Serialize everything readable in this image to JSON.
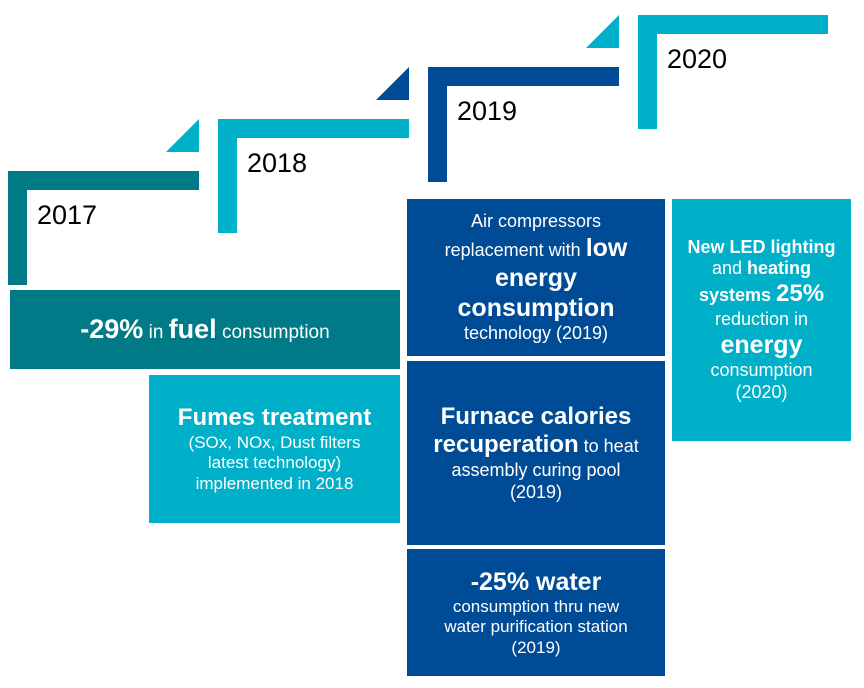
{
  "colors": {
    "teal": "#007A87",
    "cyan": "#00AFC8",
    "navy": "#004B96"
  },
  "years": [
    "2017",
    "2018",
    "2019",
    "2020"
  ],
  "fuel": {
    "pct": "-29%",
    "in": " in ",
    "fuel": "fuel",
    "rest": " consumption"
  },
  "fumes": {
    "title": "Fumes treatment",
    "l1": "(SOx, NOx, Dust filters",
    "l2": "latest technology)",
    "l3": "implemented in 2018"
  },
  "air": {
    "l1": "Air compressors",
    "l2a": "replacement with ",
    "l2b": "low",
    "l3": "energy",
    "l4": "consumption",
    "l5": "technology (2019)"
  },
  "furnace": {
    "l1": "Furnace calories",
    "l2a": "recuperation",
    "l2b": " to heat",
    "l3": "assembly curing pool",
    "l4": "(2019)"
  },
  "water": {
    "l1": "-25% water",
    "l2": "consumption thru new",
    "l3": "water purification station",
    "l4": "(2019)"
  },
  "led": {
    "l1": "New LED lighting",
    "l2a": "and ",
    "l2b": "heating",
    "l3a": "systems ",
    "l3b": "25%",
    "l4": "reduction in",
    "l5": "energy",
    "l6": "consumption",
    "l7": "(2020)"
  }
}
